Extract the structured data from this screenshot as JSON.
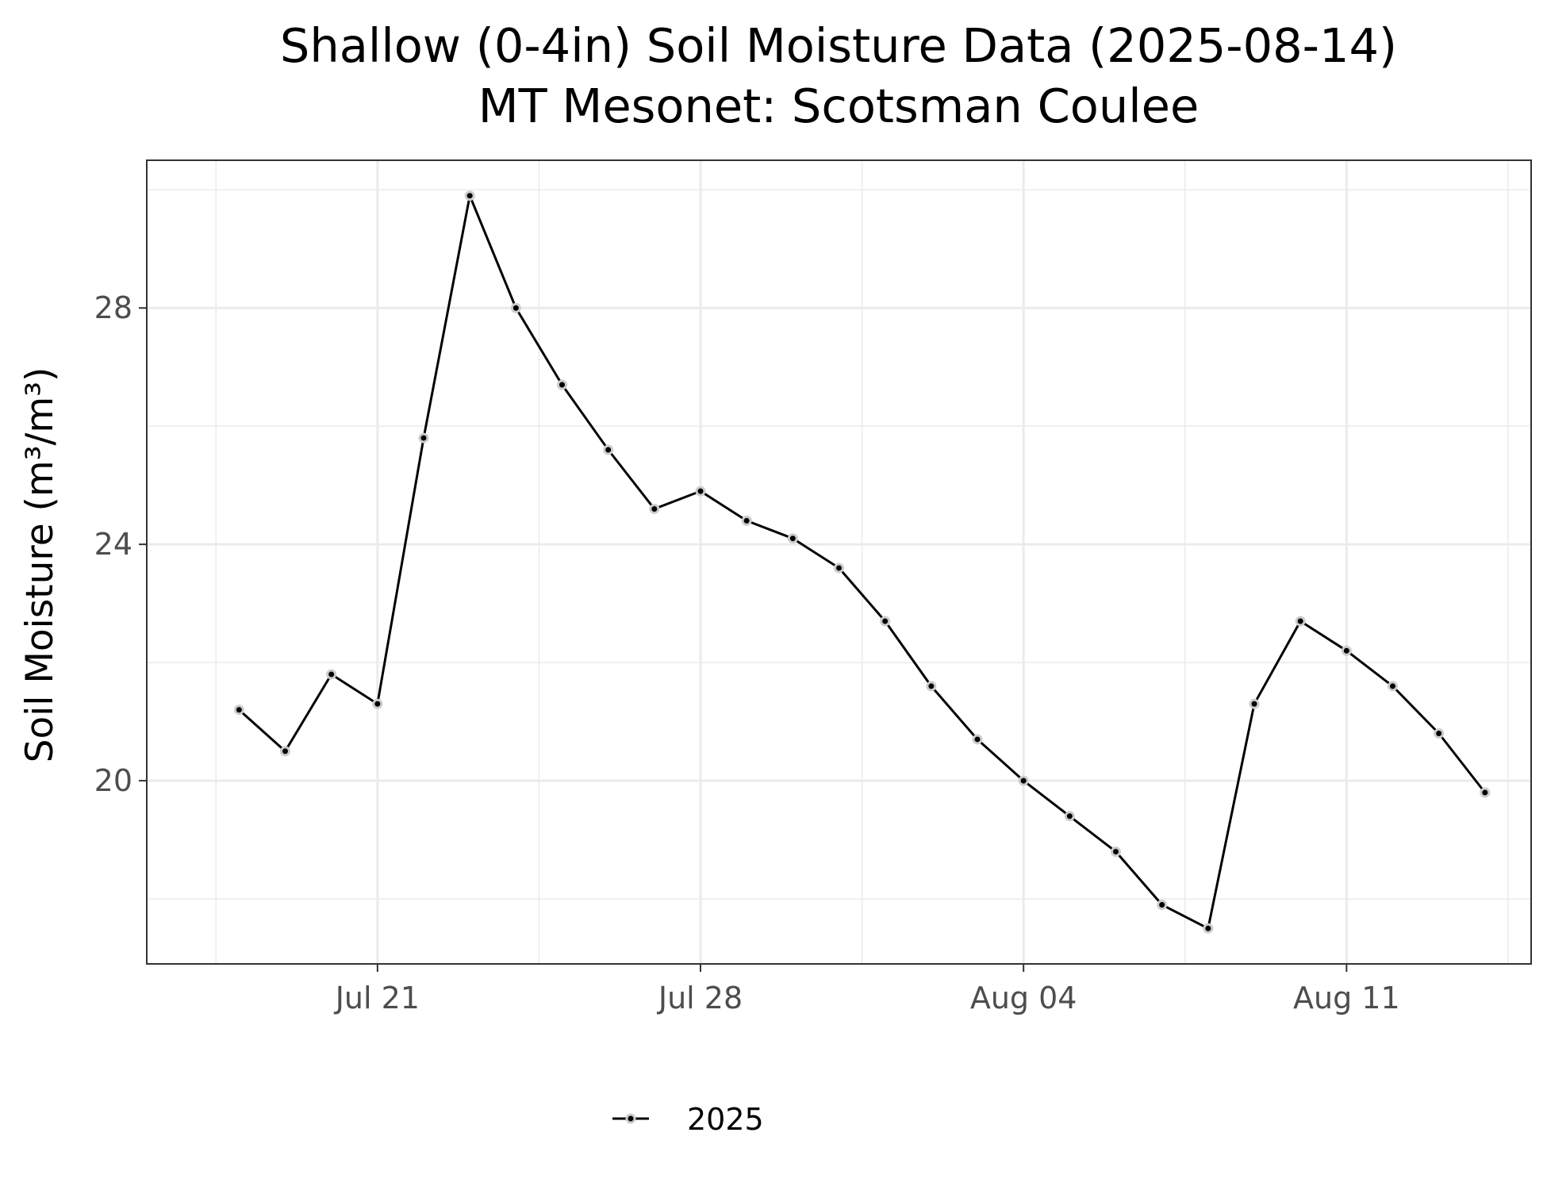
{
  "chart_data": {
    "type": "line",
    "title": "Shallow (0-4in) Soil Moisture Data (2025-08-14)",
    "subtitle": "MT Mesonet: Scotsman Coulee",
    "xlabel": "",
    "ylabel": "Soil Moisture (m³/m³)",
    "x_ticks": [
      "Jul 21",
      "Jul 28",
      "Aug 04",
      "Aug 11"
    ],
    "y_ticks": [
      20,
      24,
      28
    ],
    "xlim": [
      "2025-07-16",
      "2025-08-15"
    ],
    "ylim": [
      16.9,
      30.5
    ],
    "grid": true,
    "legend": "bottom",
    "series": [
      {
        "name": "2025",
        "color": "#000000",
        "x": [
          "2025-07-18",
          "2025-07-19",
          "2025-07-20",
          "2025-07-21",
          "2025-07-22",
          "2025-07-23",
          "2025-07-24",
          "2025-07-25",
          "2025-07-26",
          "2025-07-27",
          "2025-07-28",
          "2025-07-29",
          "2025-07-30",
          "2025-07-31",
          "2025-08-01",
          "2025-08-02",
          "2025-08-03",
          "2025-08-04",
          "2025-08-05",
          "2025-08-06",
          "2025-08-07",
          "2025-08-08",
          "2025-08-09",
          "2025-08-10",
          "2025-08-11",
          "2025-08-12",
          "2025-08-13",
          "2025-08-14"
        ],
        "values": [
          21.2,
          20.5,
          21.8,
          21.3,
          25.8,
          29.9,
          28.0,
          26.7,
          25.6,
          24.6,
          24.9,
          24.4,
          24.1,
          23.6,
          22.7,
          21.6,
          20.7,
          20.0,
          19.4,
          18.8,
          17.9,
          17.5,
          21.3,
          22.7,
          22.2,
          21.6,
          20.8,
          19.8
        ]
      }
    ]
  }
}
